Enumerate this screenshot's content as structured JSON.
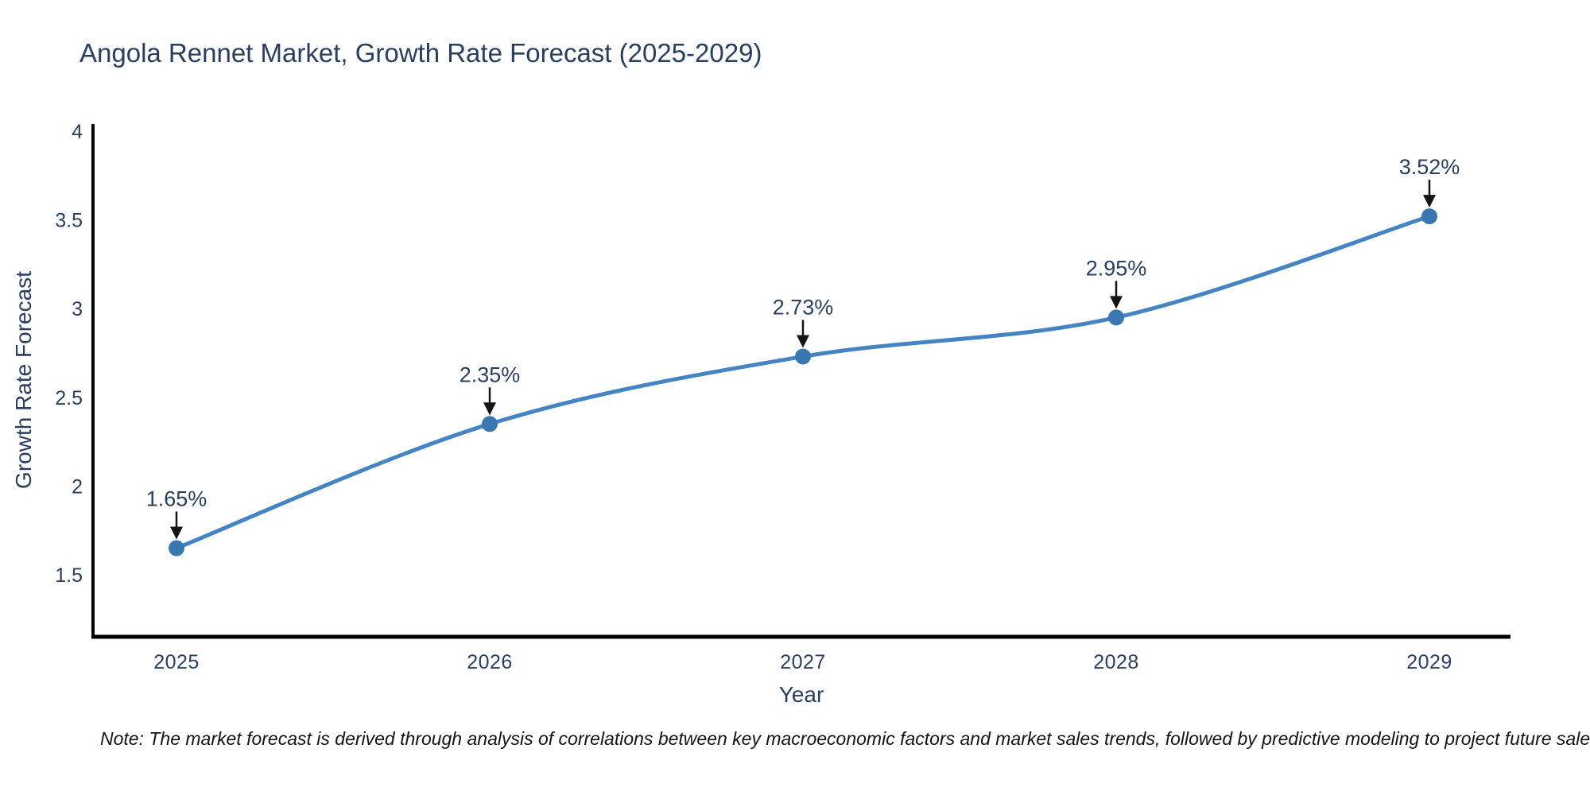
{
  "title": "Angola Rennet Market, Growth Rate Forecast (2025-2029)",
  "footnote": "Note: The market forecast is derived through analysis of correlations between key macroeconomic factors and market sales trends, followed by predictive modeling to project future sales",
  "chart_data": {
    "type": "line",
    "title": "Angola Rennet Market, Growth Rate Forecast (2025-2029)",
    "xlabel": "Year",
    "ylabel": "Growth Rate Forecast",
    "categories": [
      "2025",
      "2026",
      "2027",
      "2028",
      "2029"
    ],
    "values": [
      1.65,
      2.35,
      2.73,
      2.95,
      3.52
    ],
    "point_labels": [
      "1.65%",
      "2.35%",
      "2.73%",
      "2.95%",
      "3.52%"
    ],
    "ytick_labels": [
      "1.5",
      "2",
      "2.5",
      "3",
      "3.5",
      "4"
    ],
    "ytick_values": [
      1.5,
      2,
      2.5,
      3,
      3.5,
      4
    ],
    "ylim": [
      1.16,
      4.0
    ],
    "line_shape": "spline",
    "grid": false,
    "legend": "none",
    "annotation_style": "black-down-arrow-to-point",
    "style": {
      "line_color": "#4484c2",
      "marker_color": "#3a76b0",
      "arrow_color": "#141414",
      "axis_color": "#000000",
      "text_color": "#2a3f5f",
      "note_color": "#141414",
      "background": "#ffffff"
    }
  }
}
